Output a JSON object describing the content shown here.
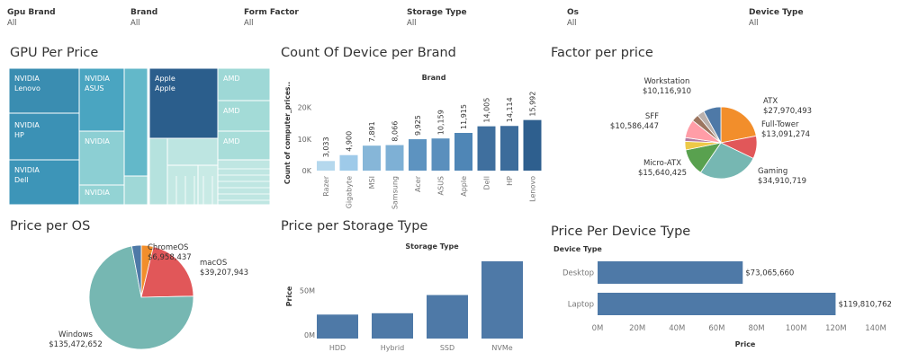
{
  "filters": [
    {
      "label": "Gpu Brand",
      "value": "All"
    },
    {
      "label": "Brand",
      "value": "All"
    },
    {
      "label": "Form Factor",
      "value": "All"
    },
    {
      "label": "Storage Type",
      "value": "All"
    },
    {
      "label": "Os",
      "value": "All"
    },
    {
      "label": "Device Type",
      "value": "All"
    }
  ],
  "titles": {
    "gpu": "GPU Per Price",
    "brand": "Count Of Device per Brand",
    "factor": "Factor per price",
    "os": "Price per OS",
    "storage": "Price per Storage Type",
    "device": "Price Per Device Type"
  },
  "chart_data": [
    {
      "type": "treemap",
      "title": "GPU Per Price",
      "cells": [
        {
          "gpu": "NVIDIA",
          "brand": "Lenovo",
          "color": "#3a8db1"
        },
        {
          "gpu": "NVIDIA",
          "brand": "HP",
          "color": "#3b91b5"
        },
        {
          "gpu": "NVIDIA",
          "brand": "Dell",
          "color": "#3d95b8"
        },
        {
          "gpu": "NVIDIA",
          "brand": "ASUS",
          "color": "#4aa5c1"
        },
        {
          "gpu": "NVIDIA",
          "brand": "",
          "color": "#63b8c9"
        },
        {
          "gpu": "NVIDIA",
          "brand": "",
          "color": "#8ccfd3"
        },
        {
          "gpu": "Apple",
          "brand": "Apple",
          "color": "#2b5e8c"
        },
        {
          "gpu": "AMD",
          "brand": "",
          "color": "#9ed8d6"
        },
        {
          "gpu": "AMD",
          "brand": "",
          "color": "#a3dbd7"
        },
        {
          "gpu": "AMD",
          "brand": "",
          "color": "#a8ddd9"
        }
      ]
    },
    {
      "type": "bar",
      "title": "Count Of Device per Brand",
      "header": "Brand",
      "ylabel": "Count of computer_prices..",
      "categories": [
        "Razer",
        "Gigabyte",
        "MSI",
        "Samsung",
        "Acer",
        "ASUS",
        "Apple",
        "Dell",
        "HP",
        "Lenovo"
      ],
      "values": [
        3033,
        4900,
        7891,
        8066,
        9925,
        10159,
        11915,
        14005,
        14114,
        15992
      ],
      "value_labels": [
        "3,033",
        "4,900",
        "7,891",
        "8,066",
        "9,925",
        "10,159",
        "11,915",
        "14,005",
        "14,114",
        "15,992"
      ],
      "colors": [
        "#b5d8ed",
        "#9ecae9",
        "#86b6d8",
        "#7eb0d5",
        "#5d93c0",
        "#5a8fbd",
        "#4f86b6",
        "#3f6f9e",
        "#3c6c9b",
        "#2e5f8e"
      ],
      "yticks": [
        {
          "v": 0,
          "label": "0K"
        },
        {
          "v": 10000,
          "label": "10K"
        },
        {
          "v": 20000,
          "label": "20K"
        }
      ],
      "ylim": [
        0,
        21000
      ]
    },
    {
      "type": "pie",
      "title": "Factor per price",
      "slices": [
        {
          "name": "ATX",
          "value": 27970493,
          "label": "$27,970,493",
          "color": "#f28e2b"
        },
        {
          "name": "Full-Tower",
          "value": 13091274,
          "label": "$13,091,274",
          "color": "#e15759"
        },
        {
          "name": "Gaming",
          "value": 34910719,
          "label": "$34,910,719",
          "color": "#76b7b2"
        },
        {
          "name": "Micro-ATX",
          "value": 15640425,
          "label": "$15,640,425",
          "color": "#59a14f"
        },
        {
          "name": "",
          "value": 4900000,
          "label": "",
          "color": "#edc948"
        },
        {
          "name": "",
          "value": 2200000,
          "label": "",
          "color": "#b07aa1"
        },
        {
          "name": "SFF",
          "value": 10586447,
          "label": "$10,586,447",
          "color": "#ff9da7"
        },
        {
          "name": "",
          "value": 4100000,
          "label": "",
          "color": "#9c755f"
        },
        {
          "name": "",
          "value": 4100000,
          "label": "",
          "color": "#bab0ac"
        },
        {
          "name": "Workstation",
          "value": 10116910,
          "label": "$10,116,910",
          "color": "#4e79a7"
        }
      ]
    },
    {
      "type": "pie",
      "title": "Price per OS",
      "slices": [
        {
          "name": "ChromeOS",
          "value": 6958437,
          "label": "$6,958,437",
          "color": "#f28e2b"
        },
        {
          "name": "macOS",
          "value": 39207943,
          "label": "$39,207,943",
          "color": "#e15759"
        },
        {
          "name": "Windows",
          "value": 135472652,
          "label": "$135,472,652",
          "color": "#76b7b2"
        },
        {
          "name": "",
          "value": 5500000,
          "label": "",
          "color": "#4e79a7"
        }
      ]
    },
    {
      "type": "bar",
      "title": "Price per Storage Type",
      "header": "Storage Type",
      "ylabel": "Price",
      "categories": [
        "HDD",
        "Hybrid",
        "SSD",
        "NVMe"
      ],
      "values": [
        27000000,
        28500000,
        49000000,
        87000000
      ],
      "color": "#4e79a7",
      "yticks": [
        {
          "v": 0,
          "label": "0M"
        },
        {
          "v": 50000000,
          "label": "50M"
        }
      ],
      "ylim": [
        0,
        90000000
      ]
    },
    {
      "type": "bar",
      "orientation": "horizontal",
      "title": "Price Per Device Type",
      "header": "Device Type",
      "xlabel": "Price",
      "categories": [
        "Desktop",
        "Laptop"
      ],
      "values": [
        73065660,
        119810762
      ],
      "value_labels": [
        "$73,065,660",
        "$119,810,762"
      ],
      "color": "#4e79a7",
      "xticks": [
        {
          "v": 0,
          "label": "0M"
        },
        {
          "v": 20000000,
          "label": "20M"
        },
        {
          "v": 40000000,
          "label": "40M"
        },
        {
          "v": 60000000,
          "label": "60M"
        },
        {
          "v": 80000000,
          "label": "80M"
        },
        {
          "v": 100000000,
          "label": "100M"
        },
        {
          "v": 120000000,
          "label": "120M"
        },
        {
          "v": 140000000,
          "label": "140M"
        }
      ],
      "xlim": [
        0,
        140000000
      ]
    }
  ]
}
